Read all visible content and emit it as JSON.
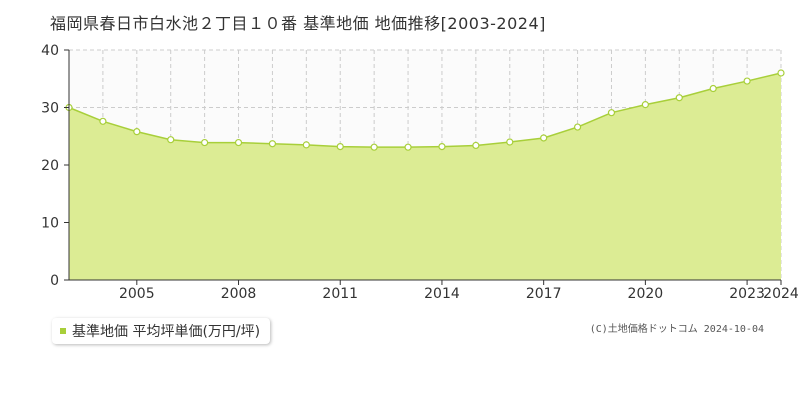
{
  "page": {
    "title": "福岡県春日市白水池２丁目１０番 基準地価 地価推移[2003-2024]",
    "credit": "(C)土地価格ドットコム 2024-10-04"
  },
  "colors": {
    "fill": "#dcec94",
    "line": "#a8cf3a",
    "legend_swatch": "#a8cf3a",
    "above_area": "#fbfbfb",
    "grid": "#cccccc",
    "axis": "#333333"
  },
  "chart_data": {
    "type": "area",
    "title": "福岡県春日市白水池２丁目１０番 基準地価 地価推移[2003-2024]",
    "xlabel": "",
    "ylabel": "",
    "x": [
      2003,
      2004,
      2005,
      2006,
      2007,
      2008,
      2009,
      2010,
      2011,
      2012,
      2013,
      2014,
      2015,
      2016,
      2017,
      2018,
      2019,
      2020,
      2021,
      2022,
      2023,
      2024
    ],
    "x_tick_labels": [
      "2005",
      "2008",
      "2011",
      "2014",
      "2017",
      "2020",
      "2023",
      "2024"
    ],
    "x_tick_values": [
      2005,
      2008,
      2011,
      2014,
      2017,
      2020,
      2023,
      2024
    ],
    "ylim": [
      0,
      40
    ],
    "y_ticks": [
      0,
      10,
      20,
      30,
      40
    ],
    "grid": true,
    "legend_position": "bottom-left",
    "series": [
      {
        "name": "基準地価 平均坪単価(万円/坪)",
        "values": [
          30.0,
          27.6,
          25.8,
          24.4,
          23.9,
          23.9,
          23.7,
          23.5,
          23.2,
          23.1,
          23.1,
          23.2,
          23.4,
          24.0,
          24.7,
          26.6,
          29.1,
          30.5,
          31.7,
          33.3,
          34.6,
          36.0
        ]
      }
    ]
  }
}
